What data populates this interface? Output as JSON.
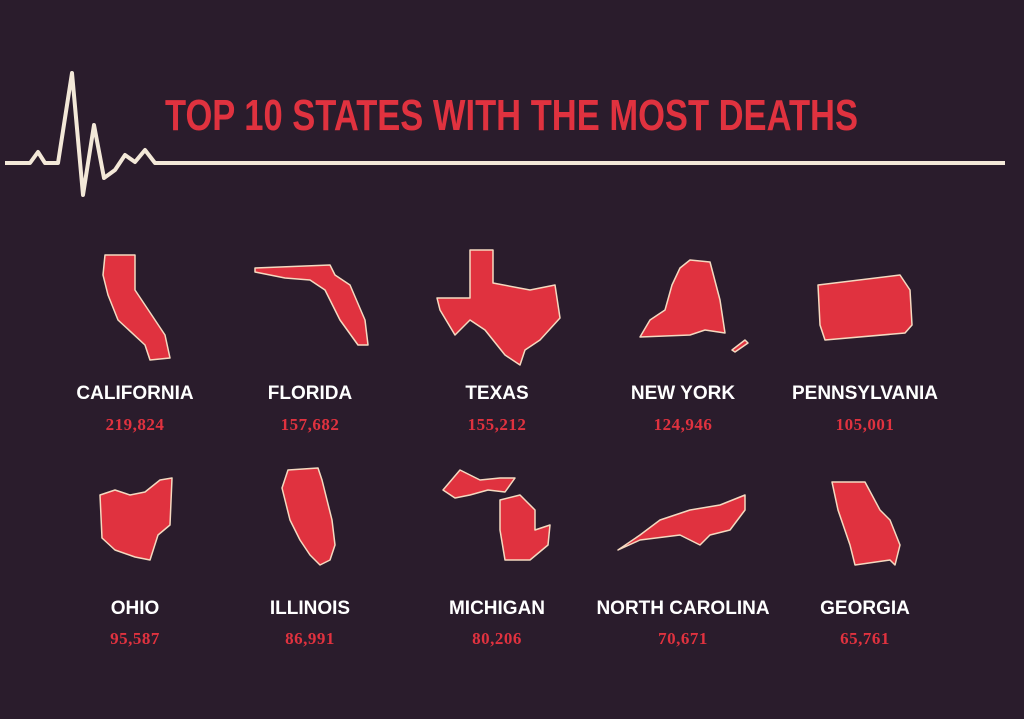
{
  "header": {
    "title": "TOP 10 STATES WITH THE MOST DEATHS"
  },
  "states": [
    {
      "name": "CALIFORNIA",
      "deaths": "219,824"
    },
    {
      "name": "FLORIDA",
      "deaths": "157,682"
    },
    {
      "name": "TEXAS",
      "deaths": "155,212"
    },
    {
      "name": "NEW YORK",
      "deaths": "124,946"
    },
    {
      "name": "PENNSYLVANIA",
      "deaths": "105,001"
    },
    {
      "name": "OHIO",
      "deaths": "95,587"
    },
    {
      "name": "ILLINOIS",
      "deaths": "86,991"
    },
    {
      "name": "MICHIGAN",
      "deaths": "80,206"
    },
    {
      "name": "NORTH CAROLINA",
      "deaths": "70,671"
    },
    {
      "name": "GEORGIA",
      "deaths": "65,761"
    }
  ]
}
